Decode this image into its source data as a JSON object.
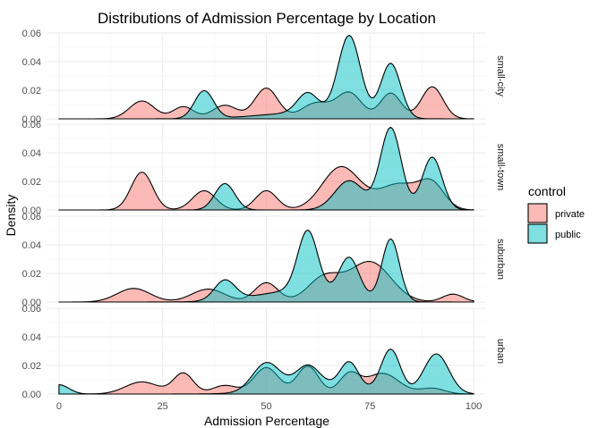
{
  "chart_data": {
    "type": "area",
    "subtype": "faceted density",
    "title": "Distributions of Admission Percentage by Location",
    "xlabel": "Admission Percentage",
    "ylabel": "Density",
    "xlim": [
      -3,
      103
    ],
    "ylim": [
      0,
      0.06
    ],
    "x_ticks": [
      0,
      25,
      50,
      75,
      100
    ],
    "x_tick_labels": [
      "0",
      "25",
      "50",
      "75",
      "100"
    ],
    "y_ticks": [
      0,
      0.02,
      0.04,
      0.06
    ],
    "y_tick_labels": [
      "0.00",
      "0.02",
      "0.04",
      "0.06"
    ],
    "grid": true,
    "legend": {
      "title": "control",
      "position": "right",
      "entries": [
        {
          "label": "private",
          "color": "#F8766D"
        },
        {
          "label": "public",
          "color": "#00BFC4"
        }
      ]
    },
    "facets": [
      {
        "label": "small-city",
        "series": [
          {
            "name": "private",
            "color": "#F8766D",
            "peaks": [
              [
                20,
                0.0125,
                3.0
              ],
              [
                30,
                0.0085,
                2.5
              ],
              [
                40,
                0.0095,
                3.0
              ],
              [
                50,
                0.0215,
                2.8
              ],
              [
                62,
                0.011,
                3.5
              ],
              [
                70,
                0.018,
                3.0
              ],
              [
                80,
                0.018,
                2.5
              ],
              [
                90,
                0.0225,
                2.6
              ]
            ]
          },
          {
            "name": "public",
            "color": "#00BFC4",
            "peaks": [
              [
                35,
                0.0195,
                2.3
              ],
              [
                60,
                0.0145,
                2.5
              ],
              [
                70,
                0.0565,
                2.7
              ],
              [
                80,
                0.0385,
                2.4
              ],
              [
                58,
                0.004,
                10
              ]
            ]
          }
        ]
      },
      {
        "label": "small-town",
        "series": [
          {
            "name": "private",
            "color": "#F8766D",
            "peaks": [
              [
                20,
                0.0265,
                2.6
              ],
              [
                35,
                0.0135,
                2.8
              ],
              [
                50,
                0.0135,
                2.6
              ],
              [
                68,
                0.03,
                4.5
              ],
              [
                82,
                0.018,
                5
              ],
              [
                90,
                0.016,
                3.0
              ]
            ]
          },
          {
            "name": "public",
            "color": "#00BFC4",
            "peaks": [
              [
                40,
                0.0185,
                2.4
              ],
              [
                70,
                0.0205,
                3.5
              ],
              [
                80,
                0.0575,
                2.5
              ],
              [
                90,
                0.037,
                2.4
              ]
            ]
          }
        ]
      },
      {
        "label": "suburban",
        "series": [
          {
            "name": "private",
            "color": "#F8766D",
            "peaks": [
              [
                18,
                0.0095,
                4.0
              ],
              [
                36,
                0.009,
                4.0
              ],
              [
                50,
                0.0135,
                2.8
              ],
              [
                64,
                0.017,
                4.0
              ],
              [
                75,
                0.028,
                5.0
              ],
              [
                95,
                0.0055,
                2.5
              ]
            ]
          },
          {
            "name": "public",
            "color": "#00BFC4",
            "peaks": [
              [
                40,
                0.014,
                2.5
              ],
              [
                60,
                0.0425,
                2.4
              ],
              [
                70,
                0.0275,
                2.4
              ],
              [
                80,
                0.0435,
                2.1
              ],
              [
                58,
                0.008,
                10
              ]
            ]
          }
        ]
      },
      {
        "label": "urban",
        "series": [
          {
            "name": "private",
            "color": "#F8766D",
            "peaks": [
              [
                20,
                0.0085,
                4.0
              ],
              [
                30,
                0.0145,
                2.4
              ],
              [
                40,
                0.006,
                3.0
              ],
              [
                50,
                0.0185,
                3.0
              ],
              [
                60,
                0.0195,
                2.6
              ],
              [
                70,
                0.0135,
                2.4
              ],
              [
                78,
                0.0145,
                4.0
              ],
              [
                90,
                0.004,
                3.0
              ]
            ]
          },
          {
            "name": "public",
            "color": "#00BFC4",
            "peaks": [
              [
                0,
                0.0065,
                2.4
              ],
              [
                50,
                0.0195,
                3.3
              ],
              [
                60,
                0.0145,
                2.8
              ],
              [
                70,
                0.018,
                2.2
              ],
              [
                80,
                0.03,
                2.3
              ],
              [
                91,
                0.028,
                3.0
              ],
              [
                63,
                0.006,
                10
              ]
            ]
          }
        ]
      }
    ]
  }
}
